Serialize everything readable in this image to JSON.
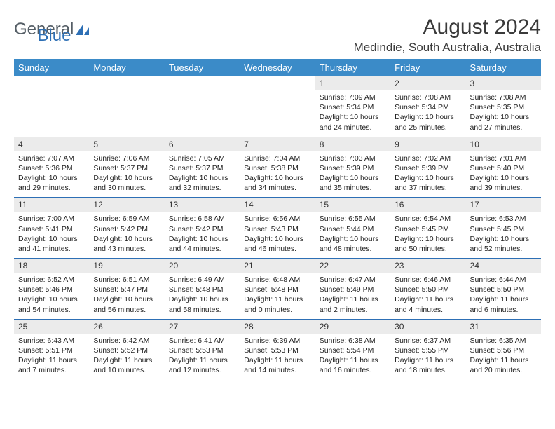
{
  "brand": {
    "word1": "General",
    "word2": "Blue"
  },
  "title": "August 2024",
  "location": "Medindie, South Australia, Australia",
  "colors": {
    "header_bg": "#3b8bc8",
    "header_fg": "#ffffff",
    "daynum_bg": "#ebebeb",
    "rule": "#2d6fb5",
    "text": "#222222"
  },
  "weekdays": [
    "Sunday",
    "Monday",
    "Tuesday",
    "Wednesday",
    "Thursday",
    "Friday",
    "Saturday"
  ],
  "first_weekday_index": 4,
  "days": [
    {
      "n": 1,
      "sr": "7:09 AM",
      "ss": "5:34 PM",
      "dl": "10 hours and 24 minutes."
    },
    {
      "n": 2,
      "sr": "7:08 AM",
      "ss": "5:34 PM",
      "dl": "10 hours and 25 minutes."
    },
    {
      "n": 3,
      "sr": "7:08 AM",
      "ss": "5:35 PM",
      "dl": "10 hours and 27 minutes."
    },
    {
      "n": 4,
      "sr": "7:07 AM",
      "ss": "5:36 PM",
      "dl": "10 hours and 29 minutes."
    },
    {
      "n": 5,
      "sr": "7:06 AM",
      "ss": "5:37 PM",
      "dl": "10 hours and 30 minutes."
    },
    {
      "n": 6,
      "sr": "7:05 AM",
      "ss": "5:37 PM",
      "dl": "10 hours and 32 minutes."
    },
    {
      "n": 7,
      "sr": "7:04 AM",
      "ss": "5:38 PM",
      "dl": "10 hours and 34 minutes."
    },
    {
      "n": 8,
      "sr": "7:03 AM",
      "ss": "5:39 PM",
      "dl": "10 hours and 35 minutes."
    },
    {
      "n": 9,
      "sr": "7:02 AM",
      "ss": "5:39 PM",
      "dl": "10 hours and 37 minutes."
    },
    {
      "n": 10,
      "sr": "7:01 AM",
      "ss": "5:40 PM",
      "dl": "10 hours and 39 minutes."
    },
    {
      "n": 11,
      "sr": "7:00 AM",
      "ss": "5:41 PM",
      "dl": "10 hours and 41 minutes."
    },
    {
      "n": 12,
      "sr": "6:59 AM",
      "ss": "5:42 PM",
      "dl": "10 hours and 43 minutes."
    },
    {
      "n": 13,
      "sr": "6:58 AM",
      "ss": "5:42 PM",
      "dl": "10 hours and 44 minutes."
    },
    {
      "n": 14,
      "sr": "6:56 AM",
      "ss": "5:43 PM",
      "dl": "10 hours and 46 minutes."
    },
    {
      "n": 15,
      "sr": "6:55 AM",
      "ss": "5:44 PM",
      "dl": "10 hours and 48 minutes."
    },
    {
      "n": 16,
      "sr": "6:54 AM",
      "ss": "5:45 PM",
      "dl": "10 hours and 50 minutes."
    },
    {
      "n": 17,
      "sr": "6:53 AM",
      "ss": "5:45 PM",
      "dl": "10 hours and 52 minutes."
    },
    {
      "n": 18,
      "sr": "6:52 AM",
      "ss": "5:46 PM",
      "dl": "10 hours and 54 minutes."
    },
    {
      "n": 19,
      "sr": "6:51 AM",
      "ss": "5:47 PM",
      "dl": "10 hours and 56 minutes."
    },
    {
      "n": 20,
      "sr": "6:49 AM",
      "ss": "5:48 PM",
      "dl": "10 hours and 58 minutes."
    },
    {
      "n": 21,
      "sr": "6:48 AM",
      "ss": "5:48 PM",
      "dl": "11 hours and 0 minutes."
    },
    {
      "n": 22,
      "sr": "6:47 AM",
      "ss": "5:49 PM",
      "dl": "11 hours and 2 minutes."
    },
    {
      "n": 23,
      "sr": "6:46 AM",
      "ss": "5:50 PM",
      "dl": "11 hours and 4 minutes."
    },
    {
      "n": 24,
      "sr": "6:44 AM",
      "ss": "5:50 PM",
      "dl": "11 hours and 6 minutes."
    },
    {
      "n": 25,
      "sr": "6:43 AM",
      "ss": "5:51 PM",
      "dl": "11 hours and 7 minutes."
    },
    {
      "n": 26,
      "sr": "6:42 AM",
      "ss": "5:52 PM",
      "dl": "11 hours and 10 minutes."
    },
    {
      "n": 27,
      "sr": "6:41 AM",
      "ss": "5:53 PM",
      "dl": "11 hours and 12 minutes."
    },
    {
      "n": 28,
      "sr": "6:39 AM",
      "ss": "5:53 PM",
      "dl": "11 hours and 14 minutes."
    },
    {
      "n": 29,
      "sr": "6:38 AM",
      "ss": "5:54 PM",
      "dl": "11 hours and 16 minutes."
    },
    {
      "n": 30,
      "sr": "6:37 AM",
      "ss": "5:55 PM",
      "dl": "11 hours and 18 minutes."
    },
    {
      "n": 31,
      "sr": "6:35 AM",
      "ss": "5:56 PM",
      "dl": "11 hours and 20 minutes."
    }
  ],
  "labels": {
    "sunrise": "Sunrise:",
    "sunset": "Sunset:",
    "daylight": "Daylight:"
  }
}
